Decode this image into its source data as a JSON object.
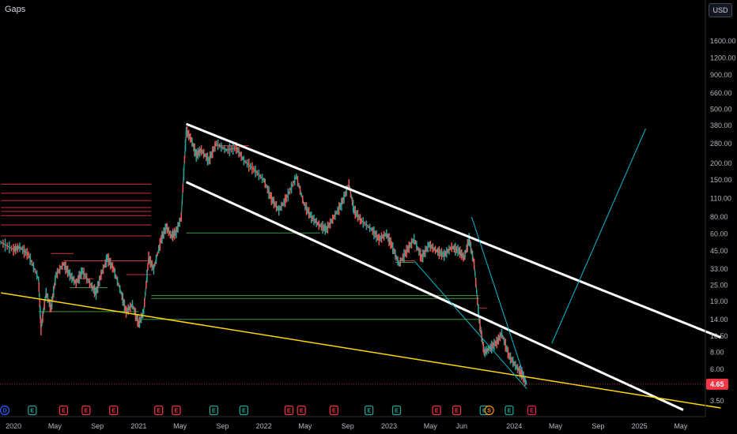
{
  "header": {
    "title": "Gaps",
    "currency": "USD"
  },
  "chart_data": {
    "type": "line",
    "title": "Gaps",
    "scale": "log",
    "ylim": [
      3.0,
      2000
    ],
    "price_ticks": [
      "1600.00",
      "1200.00",
      "900.00",
      "660.00",
      "500.00",
      "380.00",
      "280.00",
      "200.00",
      "150.00",
      "110.00",
      "80.00",
      "60.00",
      "45.00",
      "33.00",
      "25.00",
      "19.00",
      "14.00",
      "10.50",
      "8.00",
      "6.00",
      "3.50"
    ],
    "price_tick_values": [
      1600,
      1200,
      900,
      660,
      500,
      380,
      280,
      200,
      150,
      110,
      80,
      60,
      45,
      33,
      25,
      19,
      14,
      10.5,
      8,
      6,
      3.5
    ],
    "time_ticks": [
      "2020",
      "May",
      "Sep",
      "2021",
      "May",
      "Sep",
      "2022",
      "May",
      "Sep",
      "2023",
      "May",
      "Jun",
      "2024",
      "May",
      "Sep",
      "2025",
      "May"
    ],
    "time_tick_years": [
      2020.0,
      2020.33,
      2020.67,
      2021.0,
      2021.33,
      2021.67,
      2022.0,
      2022.33,
      2022.67,
      2023.0,
      2023.33,
      2023.58,
      2024.0,
      2024.33,
      2024.67,
      2025.0,
      2025.33
    ],
    "last_price": {
      "label": "4.65",
      "value": 4.65,
      "color": "#f23645"
    },
    "series": [
      {
        "name": "",
        "color": "#26a69a",
        "points": [
          [
            2019.9,
            52
          ],
          [
            2020.0,
            46
          ],
          [
            2020.05,
            48
          ],
          [
            2020.12,
            42
          ],
          [
            2020.2,
            28
          ],
          [
            2020.22,
            12
          ],
          [
            2020.26,
            22
          ],
          [
            2020.3,
            17
          ],
          [
            2020.34,
            30
          ],
          [
            2020.4,
            36
          ],
          [
            2020.45,
            30
          ],
          [
            2020.5,
            26
          ],
          [
            2020.55,
            32
          ],
          [
            2020.62,
            25
          ],
          [
            2020.66,
            22
          ],
          [
            2020.7,
            30
          ],
          [
            2020.75,
            40
          ],
          [
            2020.8,
            33
          ],
          [
            2020.86,
            22
          ],
          [
            2020.9,
            16
          ],
          [
            2020.95,
            18
          ],
          [
            2021.0,
            13
          ],
          [
            2021.04,
            16
          ],
          [
            2021.08,
            40
          ],
          [
            2021.12,
            33
          ],
          [
            2021.18,
            55
          ],
          [
            2021.22,
            68
          ],
          [
            2021.26,
            58
          ],
          [
            2021.3,
            62
          ],
          [
            2021.34,
            80
          ],
          [
            2021.38,
            350
          ],
          [
            2021.42,
            300
          ],
          [
            2021.46,
            230
          ],
          [
            2021.5,
            250
          ],
          [
            2021.56,
            210
          ],
          [
            2021.62,
            280
          ],
          [
            2021.7,
            250
          ],
          [
            2021.78,
            260
          ],
          [
            2021.84,
            210
          ],
          [
            2021.92,
            180
          ],
          [
            2022.0,
            150
          ],
          [
            2022.06,
            110
          ],
          [
            2022.12,
            90
          ],
          [
            2022.18,
            110
          ],
          [
            2022.26,
            160
          ],
          [
            2022.32,
            100
          ],
          [
            2022.38,
            80
          ],
          [
            2022.44,
            70
          ],
          [
            2022.5,
            65
          ],
          [
            2022.56,
            80
          ],
          [
            2022.62,
            100
          ],
          [
            2022.68,
            140
          ],
          [
            2022.72,
            90
          ],
          [
            2022.78,
            75
          ],
          [
            2022.86,
            65
          ],
          [
            2022.92,
            55
          ],
          [
            2022.98,
            60
          ],
          [
            2023.02,
            50
          ],
          [
            2023.08,
            36
          ],
          [
            2023.14,
            45
          ],
          [
            2023.2,
            55
          ],
          [
            2023.26,
            40
          ],
          [
            2023.32,
            50
          ],
          [
            2023.38,
            45
          ],
          [
            2023.44,
            42
          ],
          [
            2023.5,
            48
          ],
          [
            2023.56,
            45
          ],
          [
            2023.6,
            40
          ],
          [
            2023.64,
            55
          ],
          [
            2023.68,
            36
          ],
          [
            2023.72,
            14
          ],
          [
            2023.76,
            8
          ],
          [
            2023.8,
            8.5
          ],
          [
            2023.86,
            9.5
          ],
          [
            2023.9,
            11
          ],
          [
            2023.96,
            7.5
          ],
          [
            2024.02,
            6.2
          ],
          [
            2024.06,
            5.6
          ],
          [
            2024.1,
            4.65
          ]
        ]
      }
    ],
    "trendlines": [
      {
        "color": "#ffffff",
        "points": [
          [
            2021.38,
            390
          ],
          [
            2025.65,
            10.3
          ]
        ]
      },
      {
        "color": "#ffffff",
        "points": [
          [
            2021.38,
            145
          ],
          [
            2025.35,
            3.0
          ]
        ]
      },
      {
        "color": "#ffd600",
        "points": [
          [
            2019.9,
            22
          ],
          [
            2025.65,
            3.1
          ]
        ]
      },
      {
        "color": "#00bcd4",
        "points": [
          [
            2024.3,
            9.3
          ],
          [
            2025.05,
            360
          ]
        ]
      },
      {
        "color": "#00bcd4",
        "points": [
          [
            2023.66,
            80
          ],
          [
            2024.1,
            4.65
          ]
        ]
      },
      {
        "color": "#00bcd4",
        "points": [
          [
            2023.2,
            38
          ],
          [
            2024.1,
            4.3
          ]
        ]
      }
    ],
    "gap_lines": [
      {
        "color": "#f23645",
        "y": 140,
        "x": [
          2019.9,
          2021.1
        ]
      },
      {
        "color": "#f23645",
        "y": 120,
        "x": [
          2019.9,
          2021.1
        ]
      },
      {
        "color": "#f23645",
        "y": 106,
        "x": [
          2019.9,
          2021.1
        ]
      },
      {
        "color": "#f23645",
        "y": 94,
        "x": [
          2019.9,
          2021.1
        ]
      },
      {
        "color": "#f23645",
        "y": 88,
        "x": [
          2019.9,
          2021.1
        ]
      },
      {
        "color": "#f23645",
        "y": 82,
        "x": [
          2019.9,
          2021.1
        ]
      },
      {
        "color": "#f23645",
        "y": 70,
        "x": [
          2019.9,
          2021.1
        ]
      },
      {
        "color": "#f23645",
        "y": 58,
        "x": [
          2019.9,
          2021.1
        ]
      },
      {
        "color": "#f23645",
        "y": 38,
        "x": [
          2020.4,
          2021.1
        ]
      },
      {
        "color": "#f23645",
        "y": 43,
        "x": [
          2020.3,
          2020.48
        ]
      },
      {
        "color": "#f23645",
        "y": 30,
        "x": [
          2020.9,
          2021.1
        ]
      },
      {
        "color": "#4caf50",
        "y": 61,
        "x": [
          2021.38,
          2022.45
        ]
      },
      {
        "color": "#4caf50",
        "y": 21,
        "x": [
          2021.1,
          2023.72
        ]
      },
      {
        "color": "#4caf50",
        "y": 20,
        "x": [
          2021.1,
          2023.72
        ]
      },
      {
        "color": "#4caf50",
        "y": 14,
        "x": [
          2020.98,
          2023.72
        ]
      },
      {
        "color": "#4caf50",
        "y": 16,
        "x": [
          2020.2,
          2021.0
        ]
      },
      {
        "color": "#4caf50",
        "y": 24,
        "x": [
          2020.45,
          2020.75
        ]
      },
      {
        "color": "#4caf50",
        "y": 37,
        "x": [
          2023.05,
          2023.2
        ]
      },
      {
        "color": "#f23645",
        "y": 38,
        "x": [
          2023.05,
          2023.2
        ]
      },
      {
        "color": "#f23645",
        "y": 45,
        "x": [
          2023.2,
          2023.4
        ]
      },
      {
        "color": "#f23645",
        "y": 17,
        "x": [
          2023.72,
          2023.78
        ]
      },
      {
        "color": "#f23645",
        "y": 270,
        "x": [
          2021.62,
          2021.88
        ]
      },
      {
        "color": "#f23645",
        "y": 28,
        "x": [
          2020.5,
          2020.64
        ]
      }
    ],
    "events": [
      {
        "label": "D",
        "year": 2019.93,
        "color": "#2962ff"
      },
      {
        "label": "E",
        "year": 2020.15,
        "color": "#26a69a"
      },
      {
        "label": "E",
        "year": 2020.4,
        "color": "#f23645"
      },
      {
        "label": "E",
        "year": 2020.58,
        "color": "#f23645"
      },
      {
        "label": "E",
        "year": 2020.8,
        "color": "#f23645"
      },
      {
        "label": "E",
        "year": 2021.16,
        "color": "#f23645"
      },
      {
        "label": "E",
        "year": 2021.3,
        "color": "#f23645"
      },
      {
        "label": "E",
        "year": 2021.6,
        "color": "#26a69a"
      },
      {
        "label": "E",
        "year": 2021.84,
        "color": "#26a69a"
      },
      {
        "label": "E",
        "year": 2022.2,
        "color": "#f23645"
      },
      {
        "label": "E",
        "year": 2022.3,
        "color": "#f23645"
      },
      {
        "label": "E",
        "year": 2022.56,
        "color": "#f23645"
      },
      {
        "label": "E",
        "year": 2022.84,
        "color": "#26a69a"
      },
      {
        "label": "E",
        "year": 2023.06,
        "color": "#26a69a"
      },
      {
        "label": "E",
        "year": 2023.38,
        "color": "#f23645"
      },
      {
        "label": "E",
        "year": 2023.54,
        "color": "#f23645"
      },
      {
        "label": "E",
        "year": 2023.76,
        "color": "#26a69a"
      },
      {
        "label": "S",
        "year": 2023.8,
        "color": "#ff9800"
      },
      {
        "label": "E",
        "year": 2023.96,
        "color": "#26a69a"
      },
      {
        "label": "E",
        "year": 2024.14,
        "color": "#e91e63"
      }
    ]
  }
}
